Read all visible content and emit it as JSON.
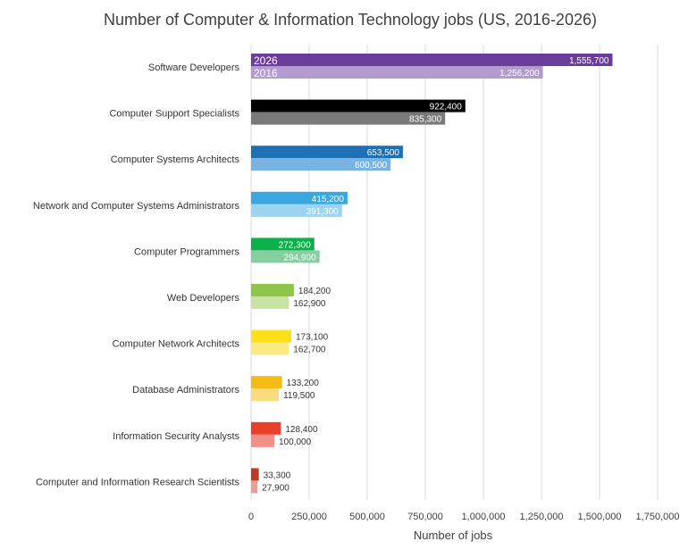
{
  "chart_data": {
    "type": "bar",
    "orientation": "horizontal",
    "title": "Number of Computer & Information Technology jobs (US, 2016-2026)",
    "xlabel": "Number of jobs",
    "ylabel": "",
    "xlim": [
      0,
      1750000
    ],
    "x_ticks": [
      "0",
      "250,000",
      "500,000",
      "750,000",
      "1,000,000",
      "1,250,000",
      "1,500,000",
      "1,750,000"
    ],
    "grid": "vertical",
    "categories": [
      "Software Developers",
      "Computer Support Specialists",
      "Computer Systems  Architects",
      "Network and Computer Systems Administrators",
      "Computer Programmers",
      "Web Developers",
      "Computer Network Architects",
      "Database Administrators",
      "Information Security Analysts",
      "Computer and Information Research Scientists"
    ],
    "series": [
      {
        "name": "2026",
        "values": [
          1555700,
          922400,
          653500,
          415200,
          272300,
          184200,
          173100,
          133200,
          128400,
          33300
        ],
        "labels": [
          "1,555,700",
          "922,400",
          "653,500",
          "415,200",
          "272,300",
          "184,200",
          "173,100",
          "133,200",
          "128,400",
          "33,300"
        ],
        "colors": [
          "#6a3d9a",
          "#000000",
          "#1f6fb4",
          "#3aa8de",
          "#0db14b",
          "#8dc64b",
          "#ffe01a",
          "#f3bc17",
          "#e8402a",
          "#c0392b"
        ]
      },
      {
        "name": "2016",
        "values": [
          1256200,
          835300,
          600500,
          391300,
          294900,
          162900,
          162700,
          119500,
          100000,
          27900
        ],
        "labels": [
          "1,256,200",
          "835,300",
          "600,500",
          "391,300",
          "294,900",
          "162,900",
          "162,700",
          "119,500",
          "100,000",
          "27,900"
        ],
        "colors": [
          "#b39bcf",
          "#7a7a7a",
          "#79b3e3",
          "#9cd3ef",
          "#86cfa0",
          "#c8e3a3",
          "#f9ea82",
          "#f9dc7e",
          "#f28f86",
          "#eb9e96"
        ]
      }
    ],
    "inside_label_threshold": 200000
  }
}
